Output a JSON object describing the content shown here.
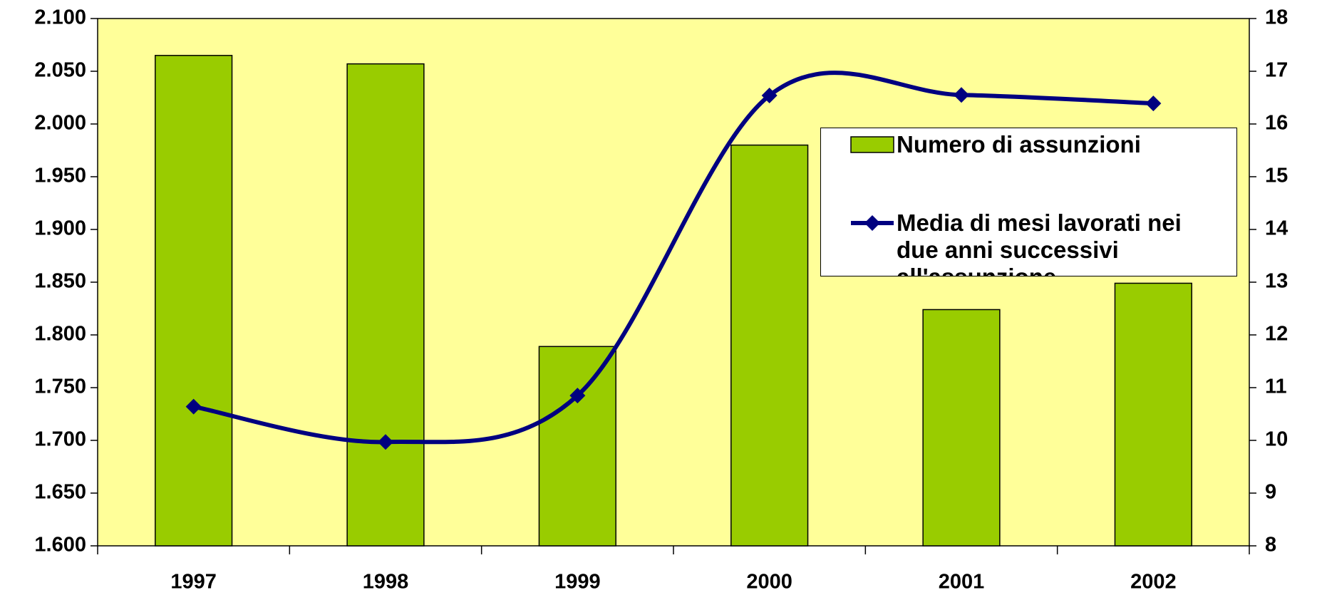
{
  "chart_data": {
    "type": "bar-line",
    "categories": [
      "1997",
      "1998",
      "1999",
      "2000",
      "2001",
      "2002"
    ],
    "series": [
      {
        "name": "Numero di assunzioni",
        "color": "#99cc00",
        "type": "bar",
        "values": [
          2065,
          2057,
          1789,
          1980,
          1824,
          1849
        ]
      },
      {
        "name": "Media di mesi lavorati nei due anni successivi all'assunzione",
        "color": "#000080",
        "type": "line",
        "axis": "y2",
        "values": [
          10.64,
          9.97,
          10.85,
          16.54,
          16.55,
          16.39
        ]
      }
    ],
    "ylim": [
      1600,
      2100
    ],
    "yticks": [
      {
        "value": 1600,
        "label": "1.600"
      },
      {
        "value": 1650,
        "label": "1.650"
      },
      {
        "value": 1700,
        "label": "1.700"
      },
      {
        "value": 1750,
        "label": "1.750"
      },
      {
        "value": 1800,
        "label": "1.800"
      },
      {
        "value": 1850,
        "label": "1.850"
      },
      {
        "value": 1900,
        "label": "1.900"
      },
      {
        "value": 1950,
        "label": "1.950"
      },
      {
        "value": 2000,
        "label": "2.000"
      },
      {
        "value": 2050,
        "label": "2.050"
      },
      {
        "value": 2100,
        "label": "2.100"
      }
    ],
    "y2lim": [
      8,
      18
    ],
    "y2ticks": [
      8,
      9,
      10,
      11,
      12,
      13,
      14,
      15,
      16,
      17,
      18
    ],
    "background": "#ffff99",
    "legend": "upper right"
  }
}
